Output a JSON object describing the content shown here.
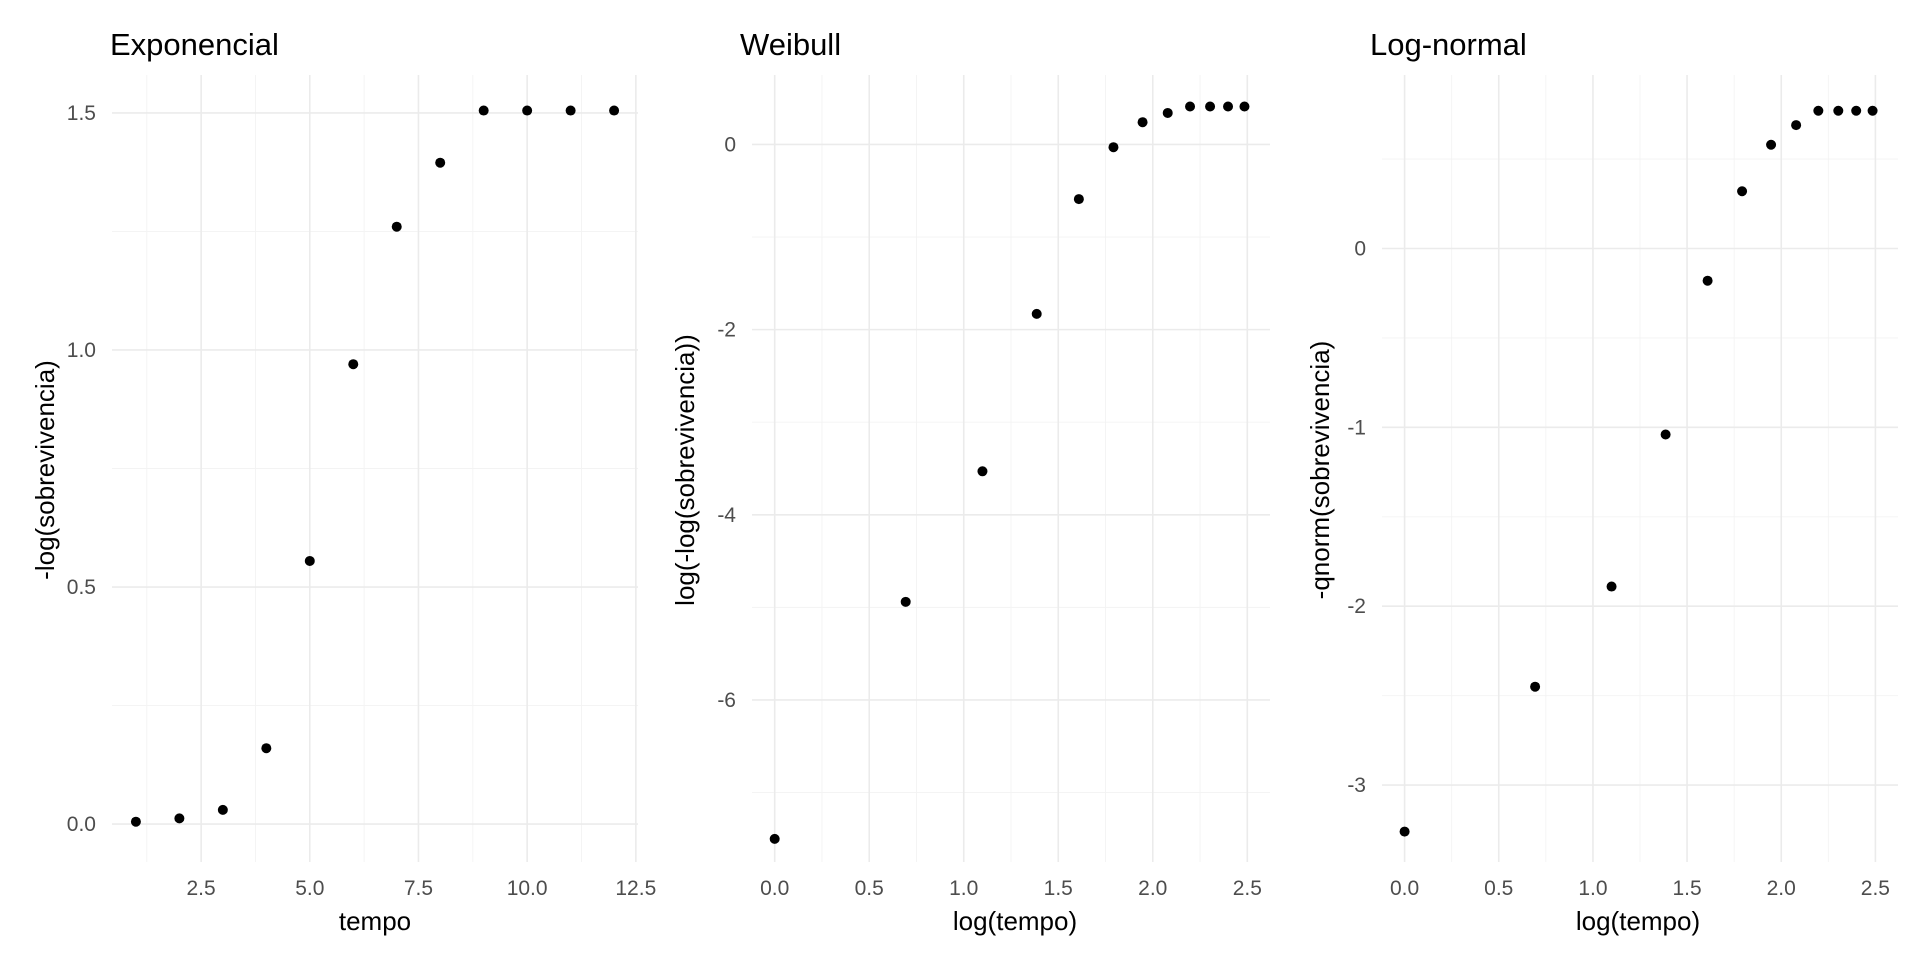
{
  "chart_data": [
    {
      "type": "scatter",
      "title": "Exponencial",
      "xlabel": "tempo",
      "ylabel": "-log(sobrevivencia)",
      "xlim": [
        0.45,
        12.55
      ],
      "ylim": [
        -0.08,
        1.58
      ],
      "x_ticks": [
        2.5,
        5.0,
        7.5,
        10.0,
        12.5
      ],
      "x_tick_labels": [
        "2.5",
        "5.0",
        "7.5",
        "10.0",
        "12.5"
      ],
      "x_minor_ticks": [
        1.25,
        3.75,
        6.25,
        8.75,
        11.25
      ],
      "y_ticks": [
        0.0,
        0.5,
        1.0,
        1.5
      ],
      "y_tick_labels": [
        "0.0",
        "0.5",
        "1.0",
        "1.5"
      ],
      "y_minor_ticks": [
        0.25,
        0.75,
        1.25
      ],
      "grid": true,
      "x": [
        1,
        2,
        3,
        4,
        5,
        6,
        7,
        8,
        9,
        10,
        11,
        12
      ],
      "y": [
        0.005,
        0.012,
        0.03,
        0.16,
        0.555,
        0.97,
        1.26,
        1.395,
        1.505,
        1.505,
        1.505,
        1.505
      ]
    },
    {
      "type": "scatter",
      "title": "Weibull",
      "xlabel": "log(tempo)",
      "ylabel": "log(-log(sobrevivencia))",
      "xlim": [
        -0.12,
        2.62
      ],
      "ylim": [
        -7.75,
        0.75
      ],
      "x_ticks": [
        0.0,
        0.5,
        1.0,
        1.5,
        2.0,
        2.5
      ],
      "x_tick_labels": [
        "0.0",
        "0.5",
        "1.0",
        "1.5",
        "2.0",
        "2.5"
      ],
      "x_minor_ticks": [
        0.25,
        0.75,
        1.25,
        1.75,
        2.25
      ],
      "y_ticks": [
        -6,
        -4,
        -2,
        0
      ],
      "y_tick_labels": [
        "-6",
        "-4",
        "-2",
        "0"
      ],
      "y_minor_ticks": [
        -7,
        -5,
        -3,
        -1
      ],
      "grid": true,
      "x": [
        0.0,
        0.693,
        1.099,
        1.386,
        1.609,
        1.792,
        1.946,
        2.079,
        2.197,
        2.303,
        2.398,
        2.485
      ],
      "y": [
        -7.5,
        -4.94,
        -3.53,
        -1.83,
        -0.59,
        -0.03,
        0.24,
        0.34,
        0.41,
        0.41,
        0.41,
        0.41
      ]
    },
    {
      "type": "scatter",
      "title": "Log-normal",
      "xlabel": "log(tempo)",
      "ylabel": "-qnorm(sobrevivencia)",
      "xlim": [
        -0.12,
        2.62
      ],
      "ylim": [
        -3.43,
        0.97
      ],
      "x_ticks": [
        0.0,
        0.5,
        1.0,
        1.5,
        2.0,
        2.5
      ],
      "x_tick_labels": [
        "0.0",
        "0.5",
        "1.0",
        "1.5",
        "2.0",
        "2.5"
      ],
      "x_minor_ticks": [
        0.25,
        0.75,
        1.25,
        1.75,
        2.25
      ],
      "y_ticks": [
        -3,
        -2,
        -1,
        0
      ],
      "y_tick_labels": [
        "-3",
        "-2",
        "-1",
        "0"
      ],
      "y_minor_ticks": [
        -2.5,
        -1.5,
        -0.5,
        0.5
      ],
      "grid": true,
      "x": [
        0.0,
        0.693,
        1.099,
        1.386,
        1.609,
        1.792,
        1.946,
        2.079,
        2.197,
        2.303,
        2.398,
        2.485
      ],
      "y": [
        -3.26,
        -2.45,
        -1.89,
        -1.04,
        -0.18,
        0.32,
        0.58,
        0.69,
        0.77,
        0.77,
        0.77,
        0.77
      ]
    }
  ]
}
